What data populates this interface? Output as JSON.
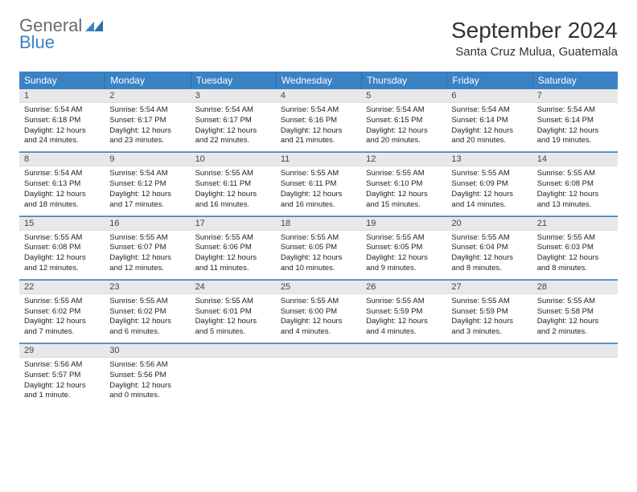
{
  "logo": {
    "word1": "General",
    "word2": "Blue"
  },
  "title": "September 2024",
  "location": "Santa Cruz Mulua, Guatemala",
  "colors": {
    "header_bg": "#3b82c4",
    "header_text": "#ffffff",
    "daynum_bg": "#e8e8e8",
    "sep_light": "#7aa9d4",
    "sep_dark": "#3b82c4",
    "logo_gray": "#6b6b6b",
    "logo_blue": "#3b82c4"
  },
  "day_names": [
    "Sunday",
    "Monday",
    "Tuesday",
    "Wednesday",
    "Thursday",
    "Friday",
    "Saturday"
  ],
  "weeks": [
    [
      {
        "n": "1",
        "sr": "5:54 AM",
        "ss": "6:18 PM",
        "dl": "12 hours and 24 minutes."
      },
      {
        "n": "2",
        "sr": "5:54 AM",
        "ss": "6:17 PM",
        "dl": "12 hours and 23 minutes."
      },
      {
        "n": "3",
        "sr": "5:54 AM",
        "ss": "6:17 PM",
        "dl": "12 hours and 22 minutes."
      },
      {
        "n": "4",
        "sr": "5:54 AM",
        "ss": "6:16 PM",
        "dl": "12 hours and 21 minutes."
      },
      {
        "n": "5",
        "sr": "5:54 AM",
        "ss": "6:15 PM",
        "dl": "12 hours and 20 minutes."
      },
      {
        "n": "6",
        "sr": "5:54 AM",
        "ss": "6:14 PM",
        "dl": "12 hours and 20 minutes."
      },
      {
        "n": "7",
        "sr": "5:54 AM",
        "ss": "6:14 PM",
        "dl": "12 hours and 19 minutes."
      }
    ],
    [
      {
        "n": "8",
        "sr": "5:54 AM",
        "ss": "6:13 PM",
        "dl": "12 hours and 18 minutes."
      },
      {
        "n": "9",
        "sr": "5:54 AM",
        "ss": "6:12 PM",
        "dl": "12 hours and 17 minutes."
      },
      {
        "n": "10",
        "sr": "5:55 AM",
        "ss": "6:11 PM",
        "dl": "12 hours and 16 minutes."
      },
      {
        "n": "11",
        "sr": "5:55 AM",
        "ss": "6:11 PM",
        "dl": "12 hours and 16 minutes."
      },
      {
        "n": "12",
        "sr": "5:55 AM",
        "ss": "6:10 PM",
        "dl": "12 hours and 15 minutes."
      },
      {
        "n": "13",
        "sr": "5:55 AM",
        "ss": "6:09 PM",
        "dl": "12 hours and 14 minutes."
      },
      {
        "n": "14",
        "sr": "5:55 AM",
        "ss": "6:08 PM",
        "dl": "12 hours and 13 minutes."
      }
    ],
    [
      {
        "n": "15",
        "sr": "5:55 AM",
        "ss": "6:08 PM",
        "dl": "12 hours and 12 minutes."
      },
      {
        "n": "16",
        "sr": "5:55 AM",
        "ss": "6:07 PM",
        "dl": "12 hours and 12 minutes."
      },
      {
        "n": "17",
        "sr": "5:55 AM",
        "ss": "6:06 PM",
        "dl": "12 hours and 11 minutes."
      },
      {
        "n": "18",
        "sr": "5:55 AM",
        "ss": "6:05 PM",
        "dl": "12 hours and 10 minutes."
      },
      {
        "n": "19",
        "sr": "5:55 AM",
        "ss": "6:05 PM",
        "dl": "12 hours and 9 minutes."
      },
      {
        "n": "20",
        "sr": "5:55 AM",
        "ss": "6:04 PM",
        "dl": "12 hours and 8 minutes."
      },
      {
        "n": "21",
        "sr": "5:55 AM",
        "ss": "6:03 PM",
        "dl": "12 hours and 8 minutes."
      }
    ],
    [
      {
        "n": "22",
        "sr": "5:55 AM",
        "ss": "6:02 PM",
        "dl": "12 hours and 7 minutes."
      },
      {
        "n": "23",
        "sr": "5:55 AM",
        "ss": "6:02 PM",
        "dl": "12 hours and 6 minutes."
      },
      {
        "n": "24",
        "sr": "5:55 AM",
        "ss": "6:01 PM",
        "dl": "12 hours and 5 minutes."
      },
      {
        "n": "25",
        "sr": "5:55 AM",
        "ss": "6:00 PM",
        "dl": "12 hours and 4 minutes."
      },
      {
        "n": "26",
        "sr": "5:55 AM",
        "ss": "5:59 PM",
        "dl": "12 hours and 4 minutes."
      },
      {
        "n": "27",
        "sr": "5:55 AM",
        "ss": "5:59 PM",
        "dl": "12 hours and 3 minutes."
      },
      {
        "n": "28",
        "sr": "5:55 AM",
        "ss": "5:58 PM",
        "dl": "12 hours and 2 minutes."
      }
    ],
    [
      {
        "n": "29",
        "sr": "5:56 AM",
        "ss": "5:57 PM",
        "dl": "12 hours and 1 minute."
      },
      {
        "n": "30",
        "sr": "5:56 AM",
        "ss": "5:56 PM",
        "dl": "12 hours and 0 minutes."
      },
      {
        "empty": true
      },
      {
        "empty": true
      },
      {
        "empty": true
      },
      {
        "empty": true
      },
      {
        "empty": true
      }
    ]
  ],
  "labels": {
    "sunrise": "Sunrise:",
    "sunset": "Sunset:",
    "daylight": "Daylight:"
  }
}
